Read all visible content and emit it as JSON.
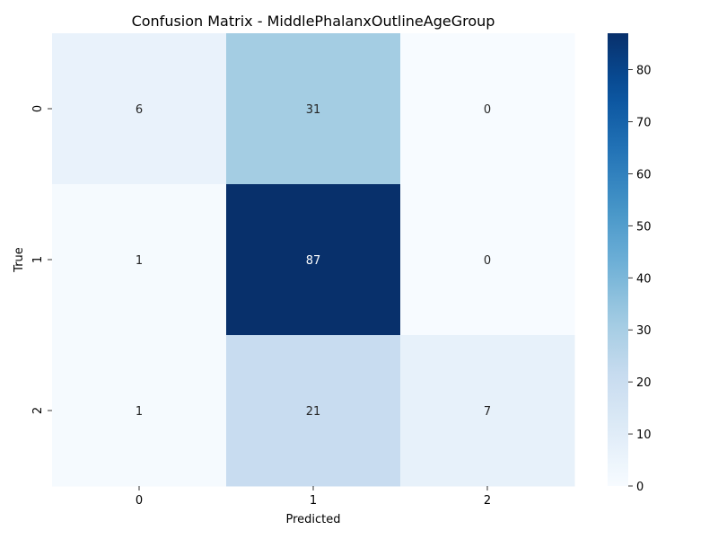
{
  "chart_data": {
    "type": "heatmap",
    "title": "Confusion Matrix - MiddlePhalanxOutlineAgeGroup",
    "xlabel": "Predicted",
    "ylabel": "True",
    "x_categories": [
      "0",
      "1",
      "2"
    ],
    "y_categories": [
      "0",
      "1",
      "2"
    ],
    "values": [
      [
        6,
        31,
        0
      ],
      [
        1,
        87,
        0
      ],
      [
        1,
        21,
        7
      ]
    ],
    "colorbar": {
      "min": 0,
      "max": 87,
      "ticks": [
        0,
        10,
        20,
        30,
        40,
        50,
        60,
        70,
        80
      ]
    },
    "colormap": "Blues",
    "annotation_colors": {
      "light": "#ffffff",
      "dark": "#262626"
    }
  }
}
